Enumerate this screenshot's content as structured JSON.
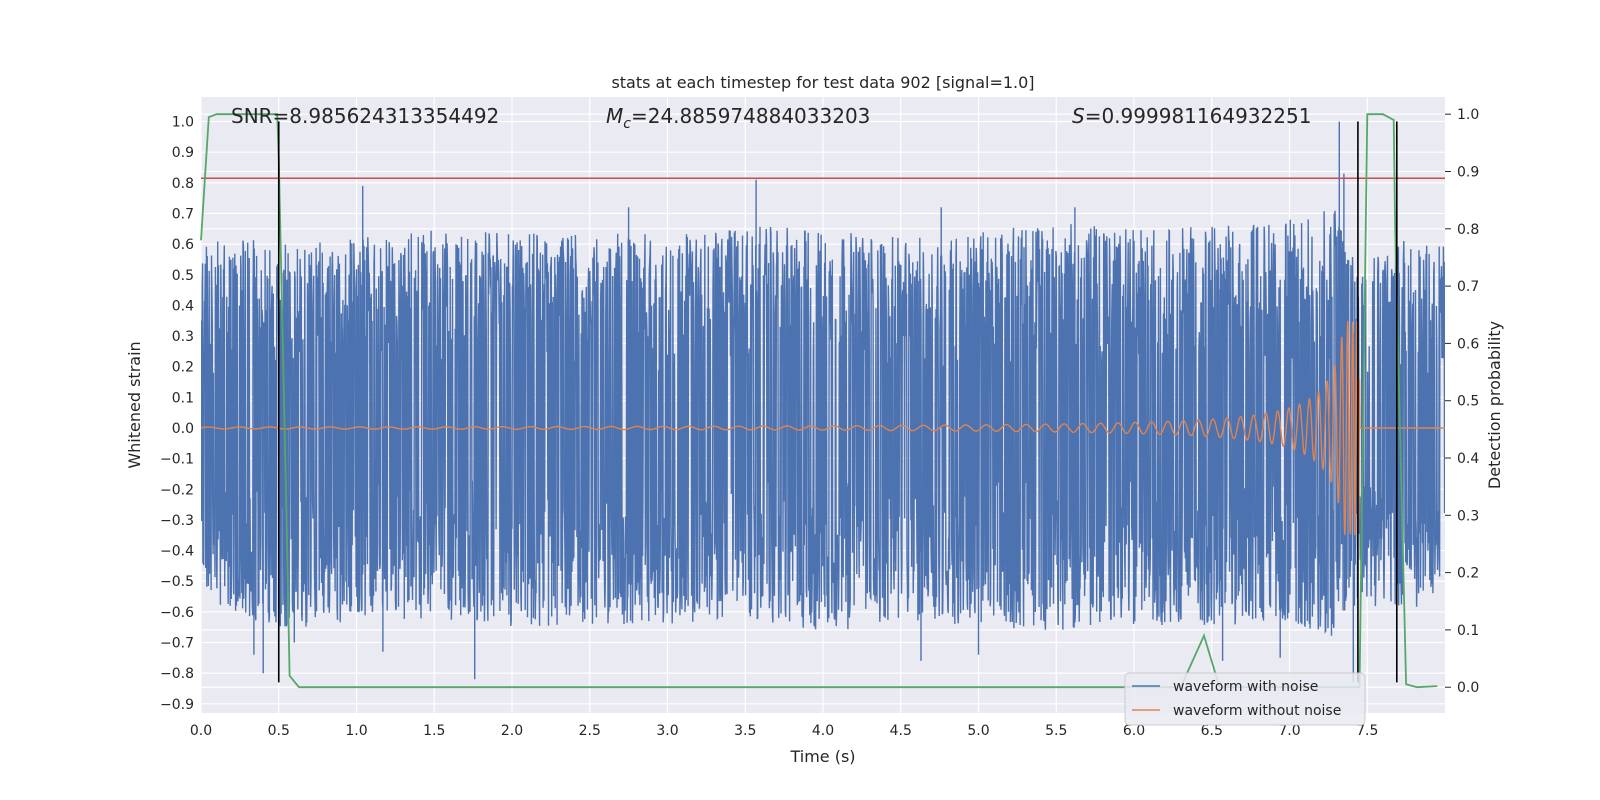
{
  "chart_data": {
    "type": "line",
    "title": "stats at each timestep for test data 902 [signal=1.0]",
    "xlabel": "Time (s)",
    "ylabel": "Whitened strain",
    "ylabel_right": "Detection probability",
    "xlim": [
      0.0,
      8.0
    ],
    "ylim": [
      -0.93,
      1.08
    ],
    "ylim_right": [
      -0.045,
      1.03
    ],
    "x_ticks": [
      "0.0",
      "0.5",
      "1.0",
      "1.5",
      "2.0",
      "2.5",
      "3.0",
      "3.5",
      "4.0",
      "4.5",
      "5.0",
      "5.5",
      "6.0",
      "6.5",
      "7.0",
      "7.5"
    ],
    "y_ticks": [
      "1.0",
      "0.9",
      "0.8",
      "0.7",
      "0.6",
      "0.5",
      "0.4",
      "0.3",
      "0.2",
      "0.1",
      "0.0",
      "−0.1",
      "−0.2",
      "−0.3",
      "−0.4",
      "−0.5",
      "−0.6",
      "−0.7",
      "−0.8",
      "−0.9"
    ],
    "y_right_ticks": [
      "1.0",
      "0.9",
      "0.8",
      "0.7",
      "0.6",
      "0.5",
      "0.4",
      "0.3",
      "0.2",
      "0.1",
      "0.0"
    ],
    "grid": true,
    "legend_position": "lower-right",
    "stats": {
      "snr_label": "SNR=8.985624313354492",
      "mc_symbol": "M",
      "mc_sub": "c",
      "mc_value": "=24.885974884033203",
      "s_symbol": "S",
      "s_value": "=0.999981164932251"
    },
    "series": [
      {
        "name": "waveform with noise",
        "color": "#4c72b0",
        "axis": "left",
        "envelope": {
          "x": [
            0.0,
            0.3,
            0.5,
            1.0,
            1.5,
            2.0,
            2.5,
            3.0,
            3.5,
            4.0,
            4.5,
            5.0,
            5.5,
            6.0,
            6.5,
            7.0,
            7.3,
            7.45,
            7.6,
            8.0
          ],
          "upper": [
            0.63,
            0.62,
            0.6,
            0.62,
            0.65,
            0.64,
            0.63,
            0.64,
            0.66,
            0.65,
            0.62,
            0.64,
            0.67,
            0.65,
            0.66,
            0.68,
            0.72,
            0.55,
            0.62,
            0.6
          ],
          "lower": [
            -0.55,
            -0.62,
            -0.66,
            -0.63,
            -0.62,
            -0.65,
            -0.64,
            -0.64,
            -0.62,
            -0.67,
            -0.63,
            -0.65,
            -0.66,
            -0.64,
            -0.65,
            -0.63,
            -0.7,
            -0.55,
            -0.6,
            -0.58
          ]
        },
        "peaks": [
          {
            "x": 0.34,
            "y": -0.74
          },
          {
            "x": 0.4,
            "y": -0.8
          },
          {
            "x": 0.5,
            "y": 0.6
          },
          {
            "x": 0.56,
            "y": 0.57
          },
          {
            "x": 0.6,
            "y": -0.7
          },
          {
            "x": 1.04,
            "y": 0.79
          },
          {
            "x": 1.17,
            "y": -0.73
          },
          {
            "x": 1.76,
            "y": -0.82
          },
          {
            "x": 2.75,
            "y": 0.72
          },
          {
            "x": 3.57,
            "y": 0.81
          },
          {
            "x": 4.63,
            "y": -0.76
          },
          {
            "x": 4.76,
            "y": 0.72
          },
          {
            "x": 5.0,
            "y": -0.74
          },
          {
            "x": 5.62,
            "y": 0.72
          },
          {
            "x": 6.57,
            "y": -0.76
          },
          {
            "x": 6.94,
            "y": -0.75
          },
          {
            "x": 7.32,
            "y": 1.0
          },
          {
            "x": 7.35,
            "y": 0.83
          },
          {
            "x": 7.41,
            "y": -0.83
          }
        ]
      },
      {
        "name": "waveform without noise",
        "color": "#dd8452",
        "axis": "left",
        "chirp": {
          "t_merger": 7.45,
          "amp_end": 0.35,
          "amp_start": 0.003,
          "freq_start": 5.0,
          "freq_end": 45.0
        }
      },
      {
        "name": "detection probability",
        "color": "#55a868",
        "axis": "right",
        "x": [
          0.0,
          0.05,
          0.1,
          0.3,
          0.49,
          0.5,
          0.55,
          0.57,
          0.63,
          6.3,
          6.45,
          6.55,
          7.45,
          7.5,
          7.6,
          7.67,
          7.68,
          7.75,
          7.82,
          7.95
        ],
        "y": [
          0.78,
          0.995,
          1.0,
          1.0,
          1.0,
          0.92,
          0.3,
          0.02,
          0.0,
          0.0,
          0.09,
          0.0,
          0.0,
          1.0,
          1.0,
          0.99,
          0.8,
          0.005,
          0.0,
          0.002
        ]
      }
    ],
    "threshold_line": {
      "axis": "left",
      "y": 0.815,
      "color": "#c44e52"
    },
    "markers_vertical": [
      {
        "x": 0.5,
        "y_top": 1.0,
        "y_bottom": -0.83,
        "color": "#000000"
      },
      {
        "x": 7.44,
        "y_top": 1.0,
        "y_bottom": -0.83,
        "color": "#000000"
      },
      {
        "x": 7.69,
        "y_top": 1.0,
        "y_bottom": -0.83,
        "color": "#000000"
      }
    ],
    "legend": [
      {
        "label": "waveform with noise",
        "color": "#4c72b0"
      },
      {
        "label": "waveform without noise",
        "color": "#dd8452"
      }
    ]
  }
}
